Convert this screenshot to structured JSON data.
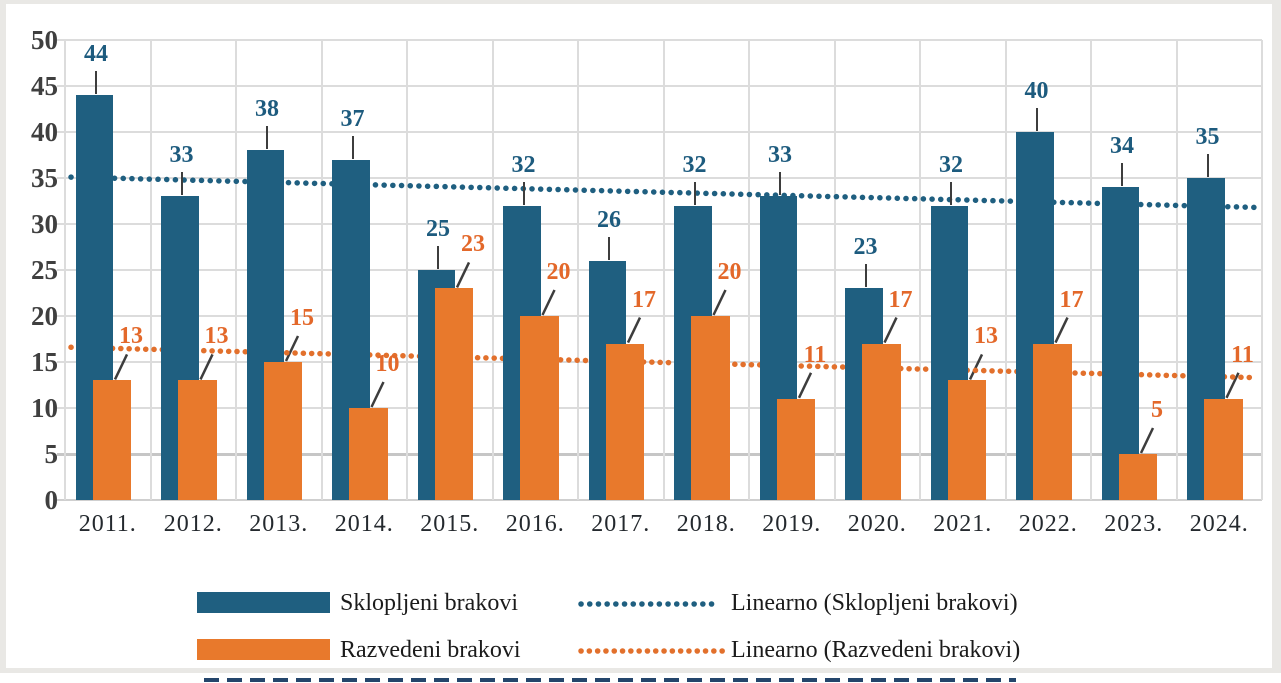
{
  "chart_data": {
    "type": "bar",
    "title": "",
    "xlabel": "",
    "ylabel": "",
    "categories": [
      "2011.",
      "2012.",
      "2013.",
      "2014.",
      "2015.",
      "2016.",
      "2017.",
      "2018.",
      "2019.",
      "2020.",
      "2021.",
      "2022.",
      "2023.",
      "2024."
    ],
    "series": [
      {
        "name": "Sklopljeni brakovi",
        "color": "#1f5f80",
        "values": [
          44,
          33,
          38,
          37,
          25,
          32,
          26,
          32,
          33,
          23,
          32,
          40,
          34,
          35
        ]
      },
      {
        "name": "Razvedeni brakovi",
        "color": "#e8792c",
        "values": [
          13,
          13,
          15,
          10,
          23,
          20,
          17,
          20,
          11,
          17,
          13,
          17,
          5,
          11
        ]
      }
    ],
    "trendlines": [
      {
        "name": "Linearno (Sklopljeni brakovi)",
        "color": "#1f5f80",
        "style": "dotted",
        "start_value": 35.1,
        "end_value": 31.8
      },
      {
        "name": "Linearno (Razvedeni brakovi)",
        "color": "#e2702c",
        "style": "dotted",
        "start_value": 16.6,
        "end_value": 13.3
      }
    ],
    "yticks": [
      0,
      5,
      10,
      15,
      20,
      25,
      30,
      35,
      40,
      45,
      50
    ],
    "ylim": [
      0,
      50
    ],
    "grid": "horizontal and vertical light gray gridlines",
    "legend_position": "bottom",
    "label_colors": {
      "series1": "#1d5b7e",
      "series2": "#e3682a"
    }
  },
  "legend": {
    "items": [
      {
        "label": "Sklopljeni brakovi",
        "marker": "solid-rect",
        "color": "#1f5f80"
      },
      {
        "label": "Linearno (Sklopljeni brakovi)",
        "marker": "dotted-line",
        "color": "#1f5f80"
      },
      {
        "label": "Razvedeni brakovi",
        "marker": "solid-rect",
        "color": "#e8792c"
      },
      {
        "label": "Linearno (Razvedeni brakovi)",
        "marker": "dotted-line",
        "color": "#e2702c"
      }
    ]
  },
  "colors": {
    "bar_blue": "#1f5f80",
    "bar_orange": "#e8792c",
    "gridline": "#dcdcdc",
    "axis_text": "#24292e",
    "frame": "#e9e8e5"
  }
}
